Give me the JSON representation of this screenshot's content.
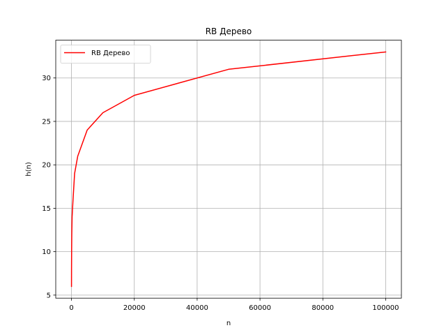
{
  "chart_data": {
    "type": "line",
    "title": "RB Дерево",
    "xlabel": "n",
    "ylabel": "h(n)",
    "xlim": [
      -5000,
      105000
    ],
    "ylim": [
      4.65,
      34.35
    ],
    "xticks": [
      0,
      20000,
      40000,
      60000,
      80000,
      100000
    ],
    "yticks": [
      5,
      10,
      15,
      20,
      25,
      30
    ],
    "grid": true,
    "legend_position": "upper-left",
    "series": [
      {
        "name": "RB Дерево",
        "color": "#ff0000",
        "x": [
          10,
          20,
          50,
          100,
          200,
          500,
          1000,
          2000,
          5000,
          10000,
          20000,
          50000,
          100000
        ],
        "y": [
          6,
          8,
          10,
          12,
          14,
          16,
          19,
          21,
          24,
          26,
          28,
          31,
          33
        ]
      }
    ]
  }
}
